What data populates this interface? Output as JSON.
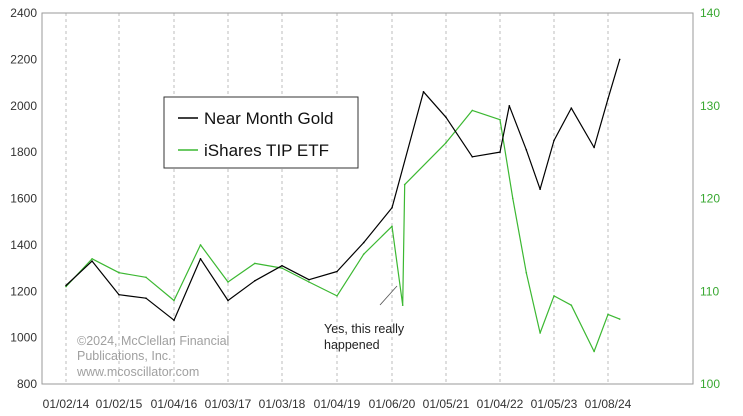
{
  "chart_data": {
    "type": "line",
    "title": "",
    "xlabel": "",
    "ylabel": "",
    "ylim": [
      800,
      2400
    ],
    "y2lim": [
      100,
      140
    ],
    "yticks": [
      "800",
      "1000",
      "1200",
      "1400",
      "1600",
      "1800",
      "2000",
      "2200",
      "2400"
    ],
    "y2ticks": [
      "100",
      "110",
      "120",
      "130",
      "140"
    ],
    "xticks": [
      "01/02/14",
      "01/02/15",
      "01/04/16",
      "01/03/17",
      "01/03/18",
      "01/04/19",
      "01/06/20",
      "01/05/21",
      "01/04/22",
      "01/05/23",
      "01/08/24"
    ],
    "grid": true,
    "legend_position": "upper-left-center",
    "colors": {
      "gold": "#000000",
      "tip": "#3cb832",
      "right_axis": "#39a832",
      "grid": "#bdbdbd"
    },
    "series": [
      {
        "name": "Near Month Gold",
        "axis": "left",
        "x": [
          "01/02/14",
          "07/01/14",
          "01/02/15",
          "07/01/15",
          "01/04/16",
          "07/01/16",
          "01/03/17",
          "07/03/17",
          "01/03/18",
          "07/02/18",
          "01/04/19",
          "07/01/19",
          "01/06/20",
          "08/06/20",
          "01/05/21",
          "07/01/21",
          "01/04/22",
          "03/08/22",
          "07/01/22",
          "10/03/22",
          "01/05/23",
          "05/03/23",
          "10/05/23",
          "01/08/24",
          "03/28/24"
        ],
        "values": [
          1225,
          1330,
          1185,
          1170,
          1075,
          1340,
          1160,
          1245,
          1310,
          1250,
          1285,
          1410,
          1560,
          2060,
          1950,
          1780,
          1800,
          2000,
          1810,
          1640,
          1850,
          1990,
          1820,
          2030,
          2200
        ]
      },
      {
        "name": "iShares TIP ETF",
        "axis": "right",
        "x": [
          "01/02/14",
          "07/01/14",
          "01/02/15",
          "07/01/15",
          "01/04/16",
          "07/01/16",
          "01/03/17",
          "07/03/17",
          "01/03/18",
          "07/02/18",
          "01/04/19",
          "07/01/19",
          "01/06/20",
          "03/18/20",
          "04/01/20",
          "01/05/21",
          "07/01/21",
          "01/04/22",
          "04/01/22",
          "07/01/22",
          "10/03/22",
          "01/05/23",
          "05/03/23",
          "10/05/23",
          "01/08/24",
          "03/28/24"
        ],
        "values": [
          110.5,
          113.5,
          112.0,
          111.5,
          109.0,
          115.0,
          111.0,
          113.0,
          112.5,
          111.0,
          109.5,
          114.0,
          117.0,
          108.5,
          121.5,
          126.0,
          129.5,
          128.5,
          120.0,
          112.0,
          105.5,
          109.5,
          108.5,
          103.5,
          107.5,
          107.0
        ]
      }
    ],
    "annotations": {
      "event_note": [
        "Yes, this really",
        "happened"
      ],
      "copyright": [
        "©2024, McClellan Financial",
        "Publications, Inc.",
        "www.mcoscillator.com"
      ]
    }
  }
}
